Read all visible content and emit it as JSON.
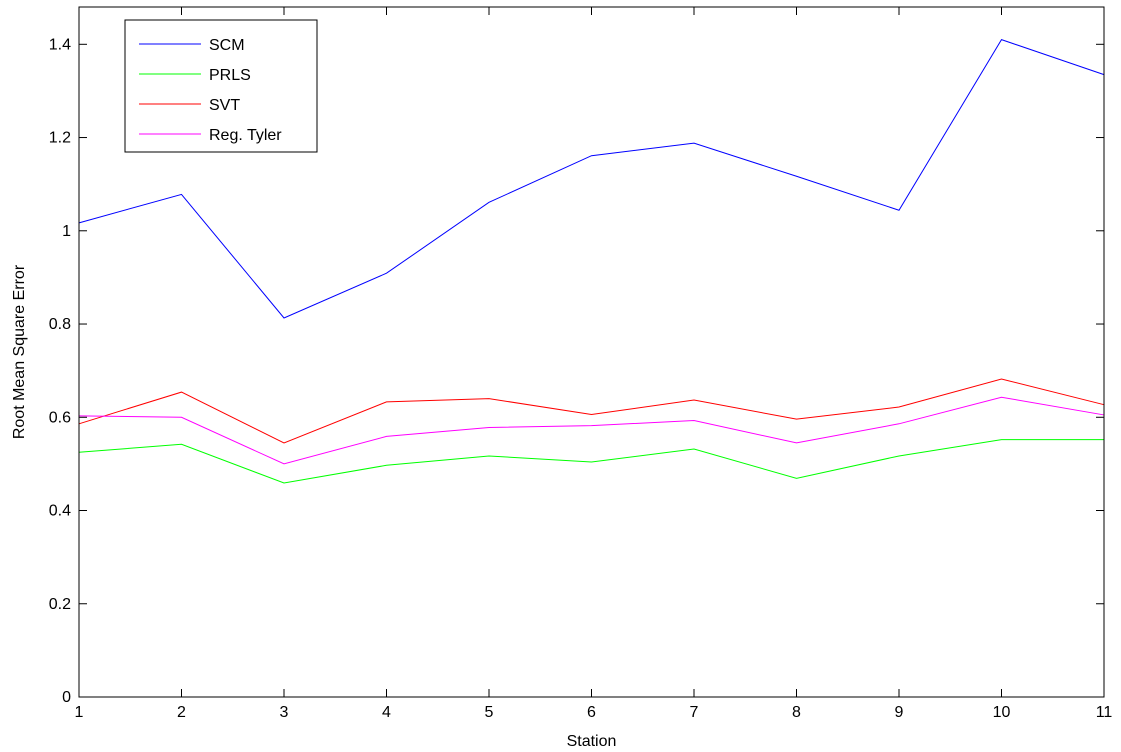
{
  "chart_data": {
    "type": "line",
    "title": "",
    "xlabel": "Station",
    "ylabel": "Root Mean Square Error",
    "x": [
      1,
      2,
      3,
      4,
      5,
      6,
      7,
      8,
      9,
      10,
      11
    ],
    "xlim": [
      1,
      11
    ],
    "ylim": [
      0,
      1.48
    ],
    "xticks": [
      1,
      2,
      3,
      4,
      5,
      6,
      7,
      8,
      9,
      10,
      11
    ],
    "yticks": [
      0,
      0.2,
      0.4,
      0.6,
      0.8,
      1,
      1.2,
      1.4
    ],
    "ytick_labels": [
      "0",
      "0.2",
      "0.4",
      "0.6",
      "0.8",
      "1",
      "1.2",
      "1.4"
    ],
    "grid": false,
    "legend_position": "top-left",
    "series": [
      {
        "name": "SCM",
        "color": "#0000ff",
        "values": [
          1.017,
          1.078,
          0.813,
          0.909,
          1.061,
          1.161,
          1.188,
          1.117,
          1.044,
          1.41,
          1.335
        ]
      },
      {
        "name": "PRLS",
        "color": "#00ff00",
        "values": [
          0.525,
          0.542,
          0.459,
          0.497,
          0.517,
          0.504,
          0.532,
          0.469,
          0.517,
          0.552,
          0.552
        ]
      },
      {
        "name": "SVT",
        "color": "#ff0000",
        "values": [
          0.586,
          0.654,
          0.545,
          0.633,
          0.64,
          0.606,
          0.637,
          0.596,
          0.622,
          0.682,
          0.627
        ]
      },
      {
        "name": "Reg. Tyler",
        "color": "#ff00ff",
        "values": [
          0.603,
          0.6,
          0.5,
          0.559,
          0.578,
          0.582,
          0.593,
          0.545,
          0.586,
          0.643,
          0.605
        ]
      }
    ]
  }
}
